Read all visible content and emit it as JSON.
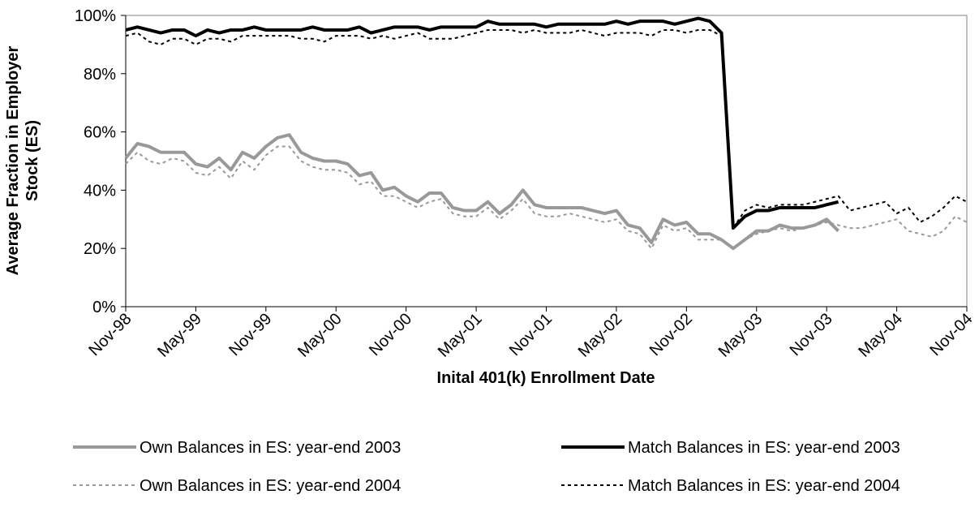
{
  "chart_data": {
    "type": "line",
    "y_label": [
      "Average Fraction in Employer",
      "Stock (ES)"
    ],
    "x_label": "Inital 401(k) Enrollment Date",
    "categories": [
      "Nov-98",
      null,
      null,
      null,
      null,
      null,
      "May-99",
      null,
      null,
      null,
      null,
      null,
      "Nov-99",
      null,
      null,
      null,
      null,
      null,
      "May-00",
      null,
      null,
      null,
      null,
      null,
      "Nov-00",
      null,
      null,
      null,
      null,
      null,
      "May-01",
      null,
      null,
      null,
      null,
      null,
      "Nov-01",
      null,
      null,
      null,
      null,
      null,
      "May-02",
      null,
      null,
      null,
      null,
      null,
      "Nov-02",
      null,
      null,
      null,
      null,
      null,
      "May-03",
      null,
      null,
      null,
      null,
      null,
      "Nov-03",
      null,
      null,
      null,
      null,
      null,
      "May-04",
      null,
      null,
      null,
      null,
      null,
      "Nov-04"
    ],
    "ylim": [
      0,
      100
    ],
    "yticks": [
      {
        "value": 0,
        "label": "0%"
      },
      {
        "value": 20,
        "label": "20%"
      },
      {
        "value": 40,
        "label": "40%"
      },
      {
        "value": 60,
        "label": "60%"
      },
      {
        "value": 80,
        "label": "80%"
      },
      {
        "value": 100,
        "label": "100%"
      }
    ],
    "series": [
      {
        "name": "Own Balances in ES: year-end 2003",
        "color": "#999999",
        "style": "solid",
        "values": [
          51,
          56,
          55,
          53,
          53,
          53,
          49,
          48,
          51,
          47,
          53,
          51,
          55,
          58,
          59,
          53,
          51,
          50,
          50,
          49,
          45,
          46,
          40,
          41,
          38,
          36,
          39,
          39,
          34,
          33,
          33,
          36,
          32,
          35,
          40,
          35,
          34,
          34,
          34,
          34,
          33,
          32,
          33,
          28,
          27,
          22,
          30,
          28,
          29,
          25,
          25,
          23,
          20,
          23,
          26,
          26,
          28,
          27,
          27,
          28,
          30,
          26,
          null,
          null,
          null,
          null,
          null,
          null,
          null,
          null,
          null,
          null,
          null
        ]
      },
      {
        "name": "Match Balances in ES: year-end 2003",
        "color": "#000000",
        "style": "solid",
        "values": [
          95,
          96,
          95,
          94,
          95,
          95,
          93,
          95,
          94,
          95,
          95,
          96,
          95,
          95,
          95,
          95,
          96,
          95,
          95,
          95,
          96,
          94,
          95,
          96,
          96,
          96,
          95,
          96,
          96,
          96,
          96,
          98,
          97,
          97,
          97,
          97,
          96,
          97,
          97,
          97,
          97,
          97,
          98,
          97,
          98,
          98,
          98,
          97,
          98,
          99,
          98,
          94,
          27,
          31,
          33,
          33,
          34,
          34,
          34,
          34,
          35,
          36,
          null,
          null,
          null,
          null,
          null,
          null,
          null,
          null,
          null,
          null,
          null
        ]
      },
      {
        "name": "Own Balances in ES: year-end 2004",
        "color": "#999999",
        "style": "dotted",
        "values": [
          49,
          53,
          50,
          49,
          51,
          50,
          46,
          45,
          48,
          44,
          50,
          47,
          52,
          55,
          55,
          50,
          48,
          47,
          47,
          46,
          42,
          43,
          38,
          38,
          36,
          34,
          36,
          37,
          32,
          31,
          31,
          34,
          30,
          33,
          37,
          32,
          31,
          31,
          32,
          31,
          30,
          29,
          30,
          26,
          25,
          20,
          28,
          26,
          27,
          23,
          23,
          23,
          20,
          23,
          25,
          26,
          27,
          26,
          27,
          28,
          29,
          28,
          27,
          27,
          28,
          29,
          30,
          26,
          25,
          24,
          26,
          31,
          29
        ]
      },
      {
        "name": "Match Balances in ES: year-end 2004",
        "color": "#000000",
        "style": "dotted",
        "values": [
          93,
          94,
          91,
          90,
          92,
          92,
          90,
          92,
          92,
          91,
          93,
          93,
          93,
          93,
          93,
          92,
          92,
          91,
          93,
          93,
          93,
          92,
          93,
          92,
          93,
          94,
          92,
          92,
          92,
          93,
          94,
          95,
          95,
          95,
          94,
          95,
          94,
          94,
          94,
          95,
          94,
          93,
          94,
          94,
          94,
          93,
          95,
          95,
          94,
          95,
          95,
          93,
          27,
          33,
          35,
          34,
          35,
          35,
          35,
          36,
          37,
          38,
          33,
          34,
          35,
          36,
          32,
          34,
          29,
          31,
          34,
          38,
          36
        ]
      }
    ]
  }
}
